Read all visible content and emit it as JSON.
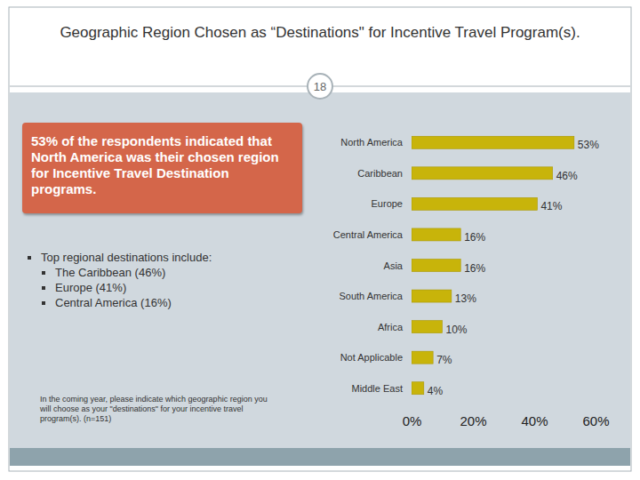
{
  "chart_data": {
    "type": "bar",
    "title": "Geographic Region Chosen as “Destinations\" for Incentive Travel Program(s).",
    "orientation": "horizontal",
    "categories": [
      "North America",
      "Caribbean",
      "Europe",
      "Central America",
      "Asia",
      "South America",
      "Africa",
      "Not Applicable",
      "Middle East"
    ],
    "values": [
      53,
      46,
      41,
      16,
      16,
      13,
      10,
      7,
      4
    ],
    "value_labels": [
      "53%",
      "46%",
      "41%",
      "16%",
      "16%",
      "13%",
      "10%",
      "7%",
      "4%"
    ],
    "data_labels": true,
    "color": "#c8b40a",
    "grid": false,
    "xlim": [
      0,
      60
    ],
    "xticks": [
      {
        "value": 0,
        "label": "0%"
      },
      {
        "value": 20,
        "label": "20%"
      },
      {
        "value": 40,
        "label": "40%"
      },
      {
        "value": 60,
        "label": "60%"
      }
    ]
  },
  "slide": {
    "number": 18,
    "callout": "53% of the respondents indicated that North America was their chosen region for Incentive Travel Destination programs.",
    "bullets_heading": "Top regional destinations include:",
    "bullets": [
      "The Caribbean (46%)",
      "Europe (41%)",
      "Central America (16%)"
    ],
    "footnote": "In the coming year, please indicate which geographic region you will choose as your \"destinations\" for your incentive travel program(s). (n=151)"
  }
}
